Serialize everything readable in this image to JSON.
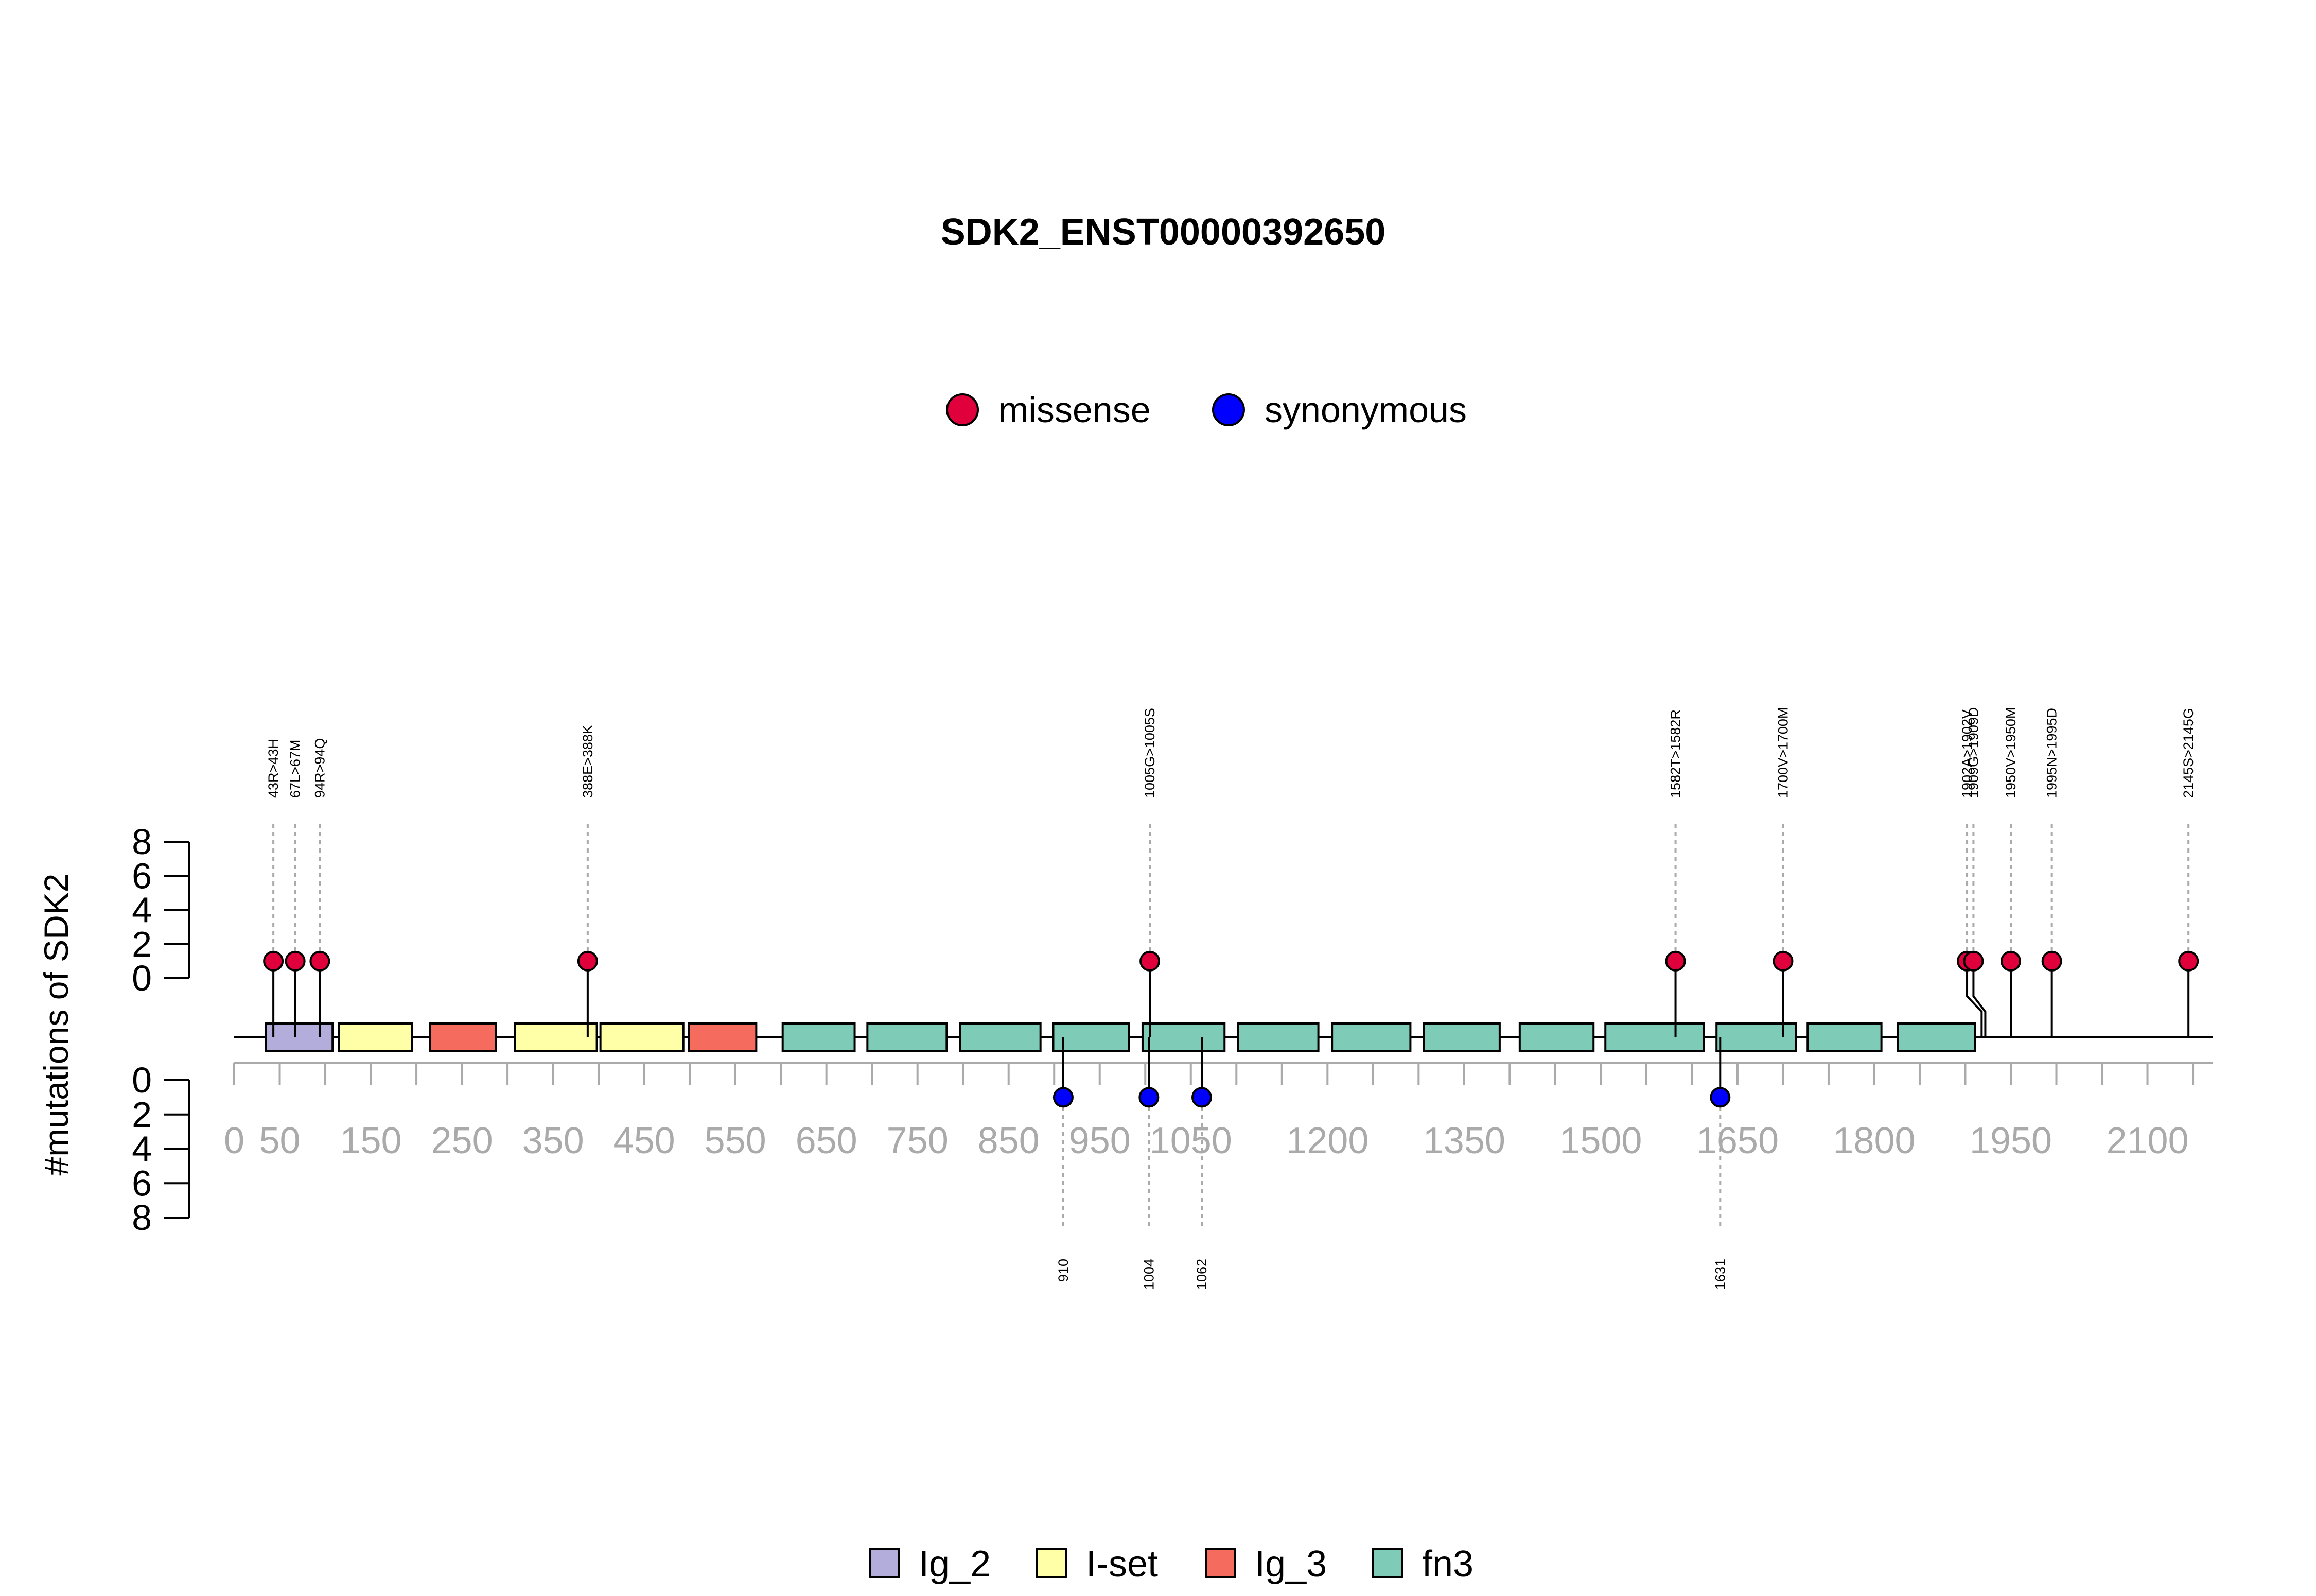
{
  "chart_data": {
    "type": "lollipop",
    "title": "SDK2_ENST00000392650",
    "ylabel": "#mutations of SDK2",
    "ylim": [
      0,
      8
    ],
    "y_ticks": [
      "0",
      "2",
      "4",
      "6",
      "8"
    ],
    "x_range": [
      0,
      2172
    ],
    "x_ticks": [
      {
        "value": 0,
        "label": "0"
      },
      {
        "value": 50,
        "label": "50"
      },
      {
        "value": 150,
        "label": "150"
      },
      {
        "value": 250,
        "label": "250"
      },
      {
        "value": 350,
        "label": "350"
      },
      {
        "value": 450,
        "label": "450"
      },
      {
        "value": 550,
        "label": "550"
      },
      {
        "value": 650,
        "label": "650"
      },
      {
        "value": 750,
        "label": "750"
      },
      {
        "value": 850,
        "label": "850"
      },
      {
        "value": 950,
        "label": "950"
      },
      {
        "value": 1050,
        "label": "1050"
      },
      {
        "value": 1200,
        "label": "1200"
      },
      {
        "value": 1350,
        "label": "1350"
      },
      {
        "value": 1500,
        "label": "1500"
      },
      {
        "value": 1650,
        "label": "1650"
      },
      {
        "value": 1800,
        "label": "1800"
      },
      {
        "value": 1950,
        "label": "1950"
      },
      {
        "value": 2100,
        "label": "2100"
      }
    ],
    "mutation_legend": [
      {
        "name": "missense",
        "color": "#e0003c"
      },
      {
        "name": "synonymous",
        "color": "#0000ff"
      }
    ],
    "missense": [
      {
        "pos": 43,
        "count": 1,
        "label": "43R>43H"
      },
      {
        "pos": 67,
        "count": 1,
        "label": "67L>67M"
      },
      {
        "pos": 94,
        "count": 1,
        "label": "94R>94Q"
      },
      {
        "pos": 388,
        "count": 1,
        "label": "388E>388K"
      },
      {
        "pos": 1005,
        "count": 1,
        "label": "1005G>1005S"
      },
      {
        "pos": 1582,
        "count": 1,
        "label": "1582T>1582R"
      },
      {
        "pos": 1700,
        "count": 1,
        "label": "1700V>1700M"
      },
      {
        "pos": 1902,
        "count": 1,
        "label": "1902A>1902V"
      },
      {
        "pos": 1909,
        "count": 1,
        "label": "1909G>1909D"
      },
      {
        "pos": 1950,
        "count": 1,
        "label": "1950V>1950M"
      },
      {
        "pos": 1995,
        "count": 1,
        "label": "1995N>1995D"
      },
      {
        "pos": 2145,
        "count": 1,
        "label": "2145S>2145G"
      }
    ],
    "synonymous": [
      {
        "pos": 910,
        "count": 1,
        "label": "910"
      },
      {
        "pos": 1004,
        "count": 1,
        "label": "1004"
      },
      {
        "pos": 1062,
        "count": 1,
        "label": "1062"
      },
      {
        "pos": 1631,
        "count": 1,
        "label": "1631"
      }
    ],
    "domains": [
      {
        "name": "Ig_2",
        "start": 35,
        "end": 108
      },
      {
        "name": "I-set",
        "start": 115,
        "end": 195
      },
      {
        "name": "Ig_3",
        "start": 215,
        "end": 287
      },
      {
        "name": "I-set",
        "start": 308,
        "end": 398
      },
      {
        "name": "I-set",
        "start": 402,
        "end": 493
      },
      {
        "name": "Ig_3",
        "start": 499,
        "end": 573
      },
      {
        "name": "fn3",
        "start": 602,
        "end": 681
      },
      {
        "name": "fn3",
        "start": 695,
        "end": 782
      },
      {
        "name": "fn3",
        "start": 797,
        "end": 885
      },
      {
        "name": "fn3",
        "start": 899,
        "end": 982
      },
      {
        "name": "fn3",
        "start": 997,
        "end": 1087
      },
      {
        "name": "fn3",
        "start": 1102,
        "end": 1190
      },
      {
        "name": "fn3",
        "start": 1205,
        "end": 1291
      },
      {
        "name": "fn3",
        "start": 1306,
        "end": 1389
      },
      {
        "name": "fn3",
        "start": 1411,
        "end": 1492
      },
      {
        "name": "fn3",
        "start": 1505,
        "end": 1613
      },
      {
        "name": "fn3",
        "start": 1627,
        "end": 1714
      },
      {
        "name": "fn3",
        "start": 1727,
        "end": 1808
      },
      {
        "name": "fn3",
        "start": 1826,
        "end": 1911
      }
    ],
    "domain_legend": [
      {
        "name": "Ig_2",
        "color": "#b3addb"
      },
      {
        "name": "I-set",
        "color": "#ffffa8"
      },
      {
        "name": "Ig_3",
        "color": "#f56c5f"
      },
      {
        "name": "fn3",
        "color": "#7ecbb7"
      }
    ]
  }
}
